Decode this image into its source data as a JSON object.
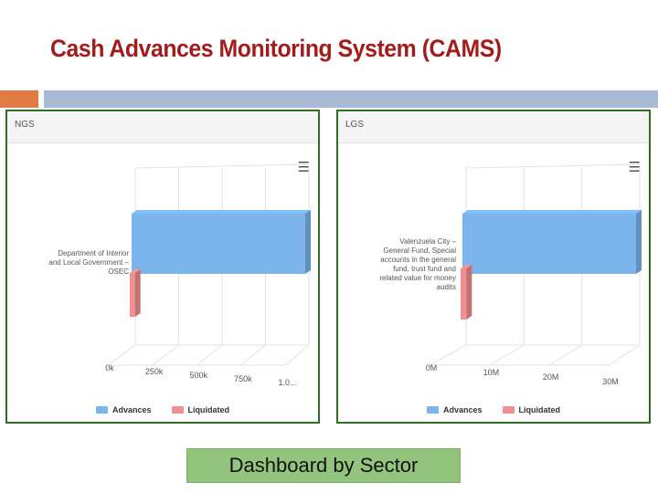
{
  "slide": {
    "title": "Cash Advances Monitoring System (CAMS)",
    "footer_label": "Dashboard by Sector",
    "colors": {
      "title": "#a11d1d",
      "accent_orange": "#e07b45",
      "accent_blue": "#a7b9d3",
      "panel_border": "#2e6f23",
      "footer_bg": "#93c47d"
    }
  },
  "panels": [
    {
      "title": "NGS",
      "menu_icon": "hamburger-menu-icon",
      "legend": [
        {
          "label": "Advances",
          "color": "#7cb5ec"
        },
        {
          "label": "Liquidated",
          "color": "#f28f90"
        }
      ]
    },
    {
      "title": "LGS",
      "menu_icon": "hamburger-menu-icon",
      "legend": [
        {
          "label": "Advances",
          "color": "#7cb5ec"
        },
        {
          "label": "Liquidated",
          "color": "#f28f90"
        }
      ]
    }
  ],
  "chart_data": [
    {
      "type": "bar",
      "orientation": "horizontal",
      "style": "3d",
      "categories": [
        "Department of Interior and Local Government – OSEC"
      ],
      "category_lines": [
        "Department of Interior",
        "and Local Government –",
        "OSEC"
      ],
      "series": [
        {
          "name": "Advances",
          "values": [
            1000000
          ],
          "color": "#7cb5ec"
        },
        {
          "name": "Liquidated",
          "values": [
            30000
          ],
          "color": "#f28f90"
        }
      ],
      "x_ticks": [
        "0k",
        "250k",
        "500k",
        "750k",
        "1.0..."
      ],
      "xlim": [
        0,
        1000000
      ],
      "grid": true,
      "legend_position": "bottom"
    },
    {
      "type": "bar",
      "orientation": "horizontal",
      "style": "3d",
      "categories": [
        "Valenzuela City – General Fund, Special accounts in the general fund, trust fund and related value for money audits"
      ],
      "category_lines": [
        "Valenzuela City –",
        "General Fund, Special",
        "accounts in the general",
        "fund, trust fund and",
        "related value for money",
        "audits"
      ],
      "series": [
        {
          "name": "Advances",
          "values": [
            30000000
          ],
          "color": "#7cb5ec"
        },
        {
          "name": "Liquidated",
          "values": [
            1000000
          ],
          "color": "#f28f90"
        }
      ],
      "x_ticks": [
        "0M",
        "10M",
        "20M",
        "30M"
      ],
      "xlim": [
        0,
        30000000
      ],
      "grid": true,
      "legend_position": "bottom"
    }
  ]
}
